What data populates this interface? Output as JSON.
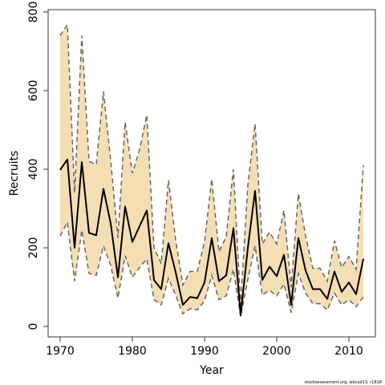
{
  "chart_data": {
    "type": "line",
    "xlabel": "Year",
    "ylabel": "Recruits",
    "xlim": [
      1970,
      2012
    ],
    "ylim": [
      0,
      800
    ],
    "xticks": [
      1970,
      1980,
      1990,
      2000,
      2010
    ],
    "yticks": [
      0,
      200,
      400,
      600,
      800
    ],
    "grid": false,
    "footer": "stockassessment.org, wbcod13, r1818",
    "colors": {
      "band": "#f5deb3",
      "estimate": "#000000",
      "bound": "#666666"
    },
    "x": [
      1970,
      1971,
      1972,
      1973,
      1974,
      1975,
      1976,
      1977,
      1978,
      1979,
      1980,
      1981,
      1982,
      1983,
      1984,
      1985,
      1986,
      1987,
      1988,
      1989,
      1990,
      1991,
      1992,
      1993,
      1994,
      1995,
      1996,
      1997,
      1998,
      1999,
      2000,
      2001,
      2002,
      2003,
      2004,
      2005,
      2006,
      2007,
      2008,
      2009,
      2010,
      2011,
      2012
    ],
    "series": [
      {
        "role": "estimate",
        "values": [
          398,
          425,
          200,
          418,
          238,
          232,
          350,
          262,
          125,
          305,
          215,
          255,
          295,
          118,
          95,
          212,
          138,
          55,
          75,
          72,
          112,
          225,
          115,
          130,
          250,
          28,
          200,
          345,
          118,
          152,
          128,
          182,
          55,
          225,
          142,
          95,
          95,
          70,
          140,
          88,
          112,
          82,
          172
        ]
      },
      {
        "role": "upper",
        "values": [
          740,
          768,
          340,
          740,
          420,
          412,
          598,
          422,
          225,
          520,
          390,
          450,
          538,
          200,
          160,
          372,
          220,
          105,
          140,
          140,
          215,
          375,
          190,
          228,
          400,
          55,
          360,
          515,
          210,
          240,
          210,
          295,
          100,
          338,
          230,
          148,
          148,
          115,
          218,
          150,
          178,
          145,
          410
        ]
      },
      {
        "role": "lower",
        "values": [
          230,
          265,
          115,
          245,
          135,
          130,
          205,
          155,
          72,
          180,
          125,
          150,
          172,
          68,
          55,
          122,
          80,
          32,
          45,
          42,
          65,
          130,
          68,
          78,
          145,
          25,
          120,
          205,
          80,
          92,
          78,
          108,
          35,
          135,
          85,
          58,
          58,
          42,
          85,
          55,
          68,
          50,
          75
        ]
      }
    ]
  }
}
